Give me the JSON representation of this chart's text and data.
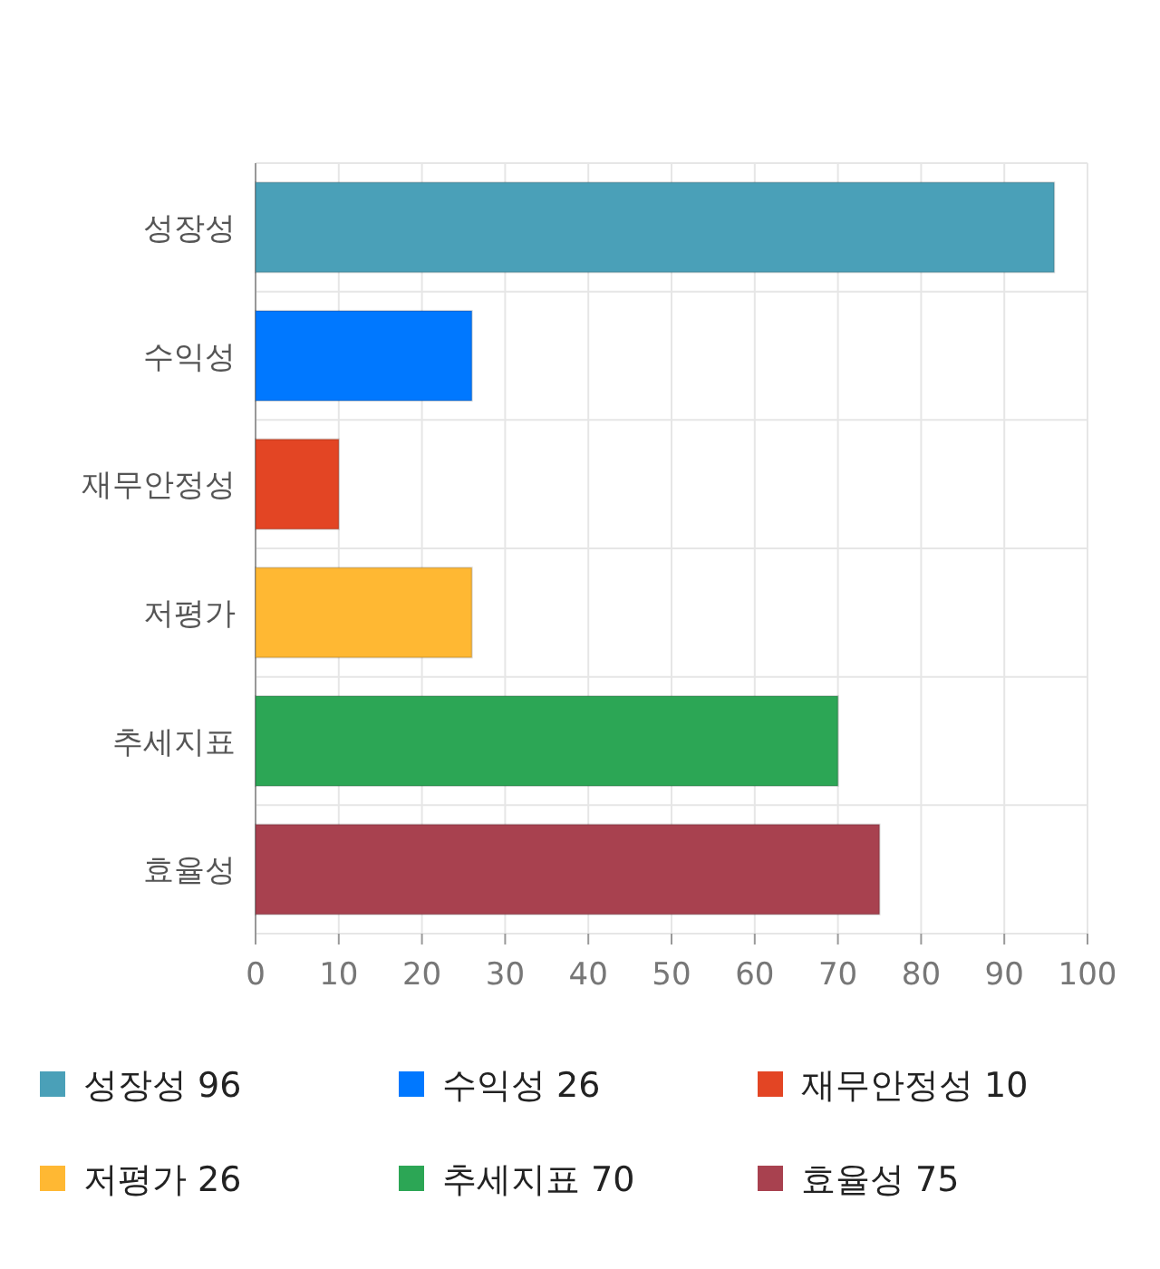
{
  "chart_data": {
    "type": "bar",
    "orientation": "horizontal",
    "stacked": true,
    "categories": [
      "성장성",
      "수익성",
      "재무안정성",
      "저평가",
      "추세지표",
      "효율성"
    ],
    "series": [
      {
        "name": "성장성 96",
        "color": "#4aa0b8",
        "values": [
          96,
          null,
          null,
          null,
          null,
          null
        ]
      },
      {
        "name": "수익성 26",
        "color": "#0078ff",
        "values": [
          null,
          26,
          null,
          null,
          null,
          null
        ]
      },
      {
        "name": "재무안정성 10",
        "color": "#e34524",
        "values": [
          null,
          null,
          10,
          null,
          null,
          null
        ]
      },
      {
        "name": "저평가 26",
        "color": "#ffb833",
        "values": [
          null,
          null,
          null,
          26,
          null,
          null
        ]
      },
      {
        "name": "추세지표 70",
        "color": "#2ca655",
        "values": [
          null,
          null,
          null,
          null,
          70,
          null
        ]
      },
      {
        "name": "효율성 75",
        "color": "#a8414f",
        "values": [
          null,
          null,
          null,
          null,
          null,
          75
        ]
      }
    ],
    "xlim": [
      0,
      100
    ],
    "xticks": [
      0,
      10,
      20,
      30,
      40,
      50,
      60,
      70,
      80,
      90,
      100
    ],
    "grid": true,
    "legend": "bottom"
  }
}
